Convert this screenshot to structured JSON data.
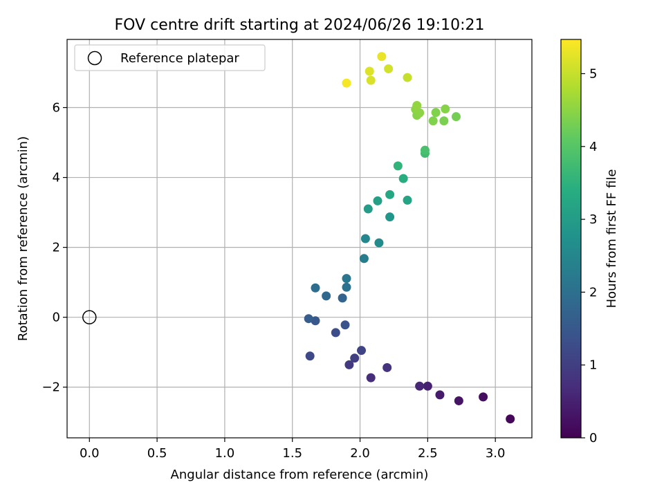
{
  "chart_data": {
    "type": "scatter",
    "title": "FOV centre drift starting at 2024/06/26 19:10:21",
    "xlabel": "Angular distance from reference (arcmin)",
    "ylabel": "Rotation from reference (arcmin)",
    "xlim": [
      -0.165,
      3.27
    ],
    "ylim": [
      -3.45,
      7.95
    ],
    "xticks": [
      0.0,
      0.5,
      1.0,
      1.5,
      2.0,
      2.5,
      3.0
    ],
    "xtick_labels": [
      "0.0",
      "0.5",
      "1.0",
      "1.5",
      "2.0",
      "2.5",
      "3.0"
    ],
    "yticks": [
      -2,
      0,
      2,
      4,
      6
    ],
    "ytick_labels": [
      "−2",
      "0",
      "2",
      "4",
      "6"
    ],
    "grid": true,
    "legend": {
      "position": "top-left",
      "entries": [
        "Reference platepar"
      ]
    },
    "reference_point": {
      "x": 0.0,
      "y": 0.0
    },
    "colorbar": {
      "label": "Hours from first FF file",
      "colormap": "viridis",
      "range": [
        0,
        5.47
      ],
      "ticks": [
        0,
        1,
        2,
        3,
        4,
        5
      ],
      "tick_labels": [
        "0",
        "1",
        "2",
        "3",
        "4",
        "5"
      ]
    },
    "points": [
      {
        "x": 3.11,
        "y": -2.91,
        "hours": 0.1
      },
      {
        "x": 2.91,
        "y": -2.28,
        "hours": 0.2
      },
      {
        "x": 2.73,
        "y": -2.39,
        "hours": 0.3
      },
      {
        "x": 2.59,
        "y": -2.22,
        "hours": 0.4
      },
      {
        "x": 2.5,
        "y": -1.97,
        "hours": 0.5
      },
      {
        "x": 2.44,
        "y": -1.97,
        "hours": 0.6
      },
      {
        "x": 2.08,
        "y": -1.73,
        "hours": 0.7
      },
      {
        "x": 2.2,
        "y": -1.44,
        "hours": 0.8
      },
      {
        "x": 1.92,
        "y": -1.36,
        "hours": 0.9
      },
      {
        "x": 1.96,
        "y": -1.17,
        "hours": 1.0
      },
      {
        "x": 2.01,
        "y": -0.95,
        "hours": 1.1
      },
      {
        "x": 1.63,
        "y": -1.11,
        "hours": 1.2
      },
      {
        "x": 1.82,
        "y": -0.44,
        "hours": 1.3
      },
      {
        "x": 1.89,
        "y": -0.22,
        "hours": 1.4
      },
      {
        "x": 1.67,
        "y": -0.1,
        "hours": 1.5
      },
      {
        "x": 1.62,
        "y": -0.04,
        "hours": 1.6
      },
      {
        "x": 1.87,
        "y": 0.55,
        "hours": 1.75
      },
      {
        "x": 1.75,
        "y": 0.61,
        "hours": 1.85
      },
      {
        "x": 1.67,
        "y": 0.84,
        "hours": 1.95
      },
      {
        "x": 1.9,
        "y": 0.86,
        "hours": 2.05
      },
      {
        "x": 1.9,
        "y": 1.11,
        "hours": 2.15
      },
      {
        "x": 2.03,
        "y": 1.68,
        "hours": 2.3
      },
      {
        "x": 2.04,
        "y": 2.25,
        "hours": 2.5
      },
      {
        "x": 2.14,
        "y": 2.13,
        "hours": 2.6
      },
      {
        "x": 2.22,
        "y": 2.87,
        "hours": 2.85
      },
      {
        "x": 2.06,
        "y": 3.1,
        "hours": 3.0
      },
      {
        "x": 2.13,
        "y": 3.33,
        "hours": 3.1
      },
      {
        "x": 2.35,
        "y": 3.35,
        "hours": 3.15
      },
      {
        "x": 2.22,
        "y": 3.51,
        "hours": 3.25
      },
      {
        "x": 2.32,
        "y": 3.97,
        "hours": 3.4
      },
      {
        "x": 2.28,
        "y": 4.33,
        "hours": 3.55
      },
      {
        "x": 2.48,
        "y": 4.69,
        "hours": 3.75
      },
      {
        "x": 2.48,
        "y": 4.78,
        "hours": 3.85
      },
      {
        "x": 2.71,
        "y": 5.74,
        "hours": 4.3
      },
      {
        "x": 2.62,
        "y": 5.62,
        "hours": 4.35
      },
      {
        "x": 2.54,
        "y": 5.62,
        "hours": 4.4
      },
      {
        "x": 2.56,
        "y": 5.86,
        "hours": 4.4
      },
      {
        "x": 2.63,
        "y": 5.96,
        "hours": 4.45
      },
      {
        "x": 2.42,
        "y": 5.78,
        "hours": 4.45
      },
      {
        "x": 2.44,
        "y": 5.85,
        "hours": 4.5
      },
      {
        "x": 2.41,
        "y": 5.95,
        "hours": 4.5
      },
      {
        "x": 2.42,
        "y": 6.06,
        "hours": 4.55
      },
      {
        "x": 2.35,
        "y": 6.86,
        "hours": 5.0
      },
      {
        "x": 2.21,
        "y": 7.11,
        "hours": 5.1
      },
      {
        "x": 2.08,
        "y": 6.78,
        "hours": 5.15
      },
      {
        "x": 2.07,
        "y": 7.04,
        "hours": 5.2
      },
      {
        "x": 2.16,
        "y": 7.46,
        "hours": 5.3
      },
      {
        "x": 1.9,
        "y": 6.7,
        "hours": 5.4
      }
    ]
  }
}
